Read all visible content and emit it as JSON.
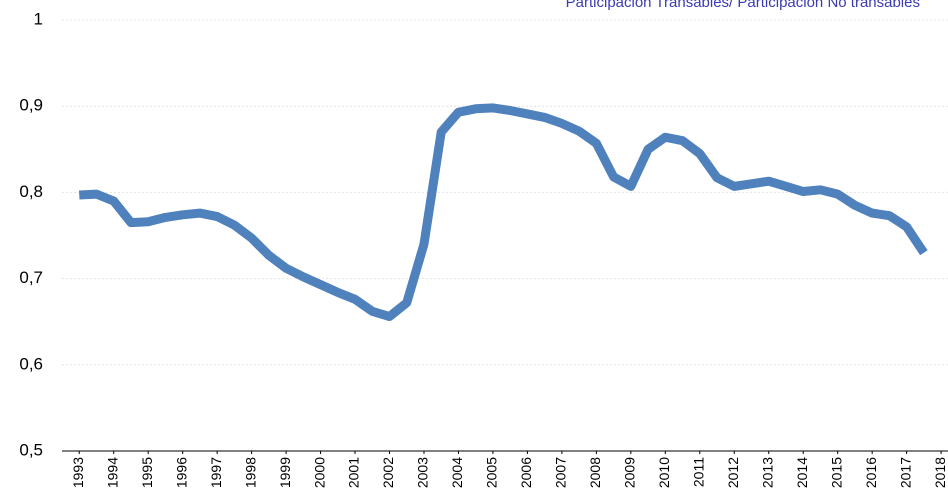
{
  "chart_data": {
    "type": "line",
    "legend_position": "top-right",
    "grid": true,
    "xlim": [
      1992.5,
      2018.2
    ],
    "xticks": [
      1993,
      1994,
      1995,
      1996,
      1997,
      1998,
      1999,
      2000,
      2001,
      2002,
      2003,
      2004,
      2005,
      2006,
      2007,
      2008,
      2009,
      2010,
      2011,
      2012,
      2013,
      2014,
      2015,
      2016,
      2017,
      2018
    ],
    "ylim": [
      0.5,
      1
    ],
    "yticks": [
      {
        "value": 0.5,
        "label": "0,5"
      },
      {
        "value": 0.6,
        "label": "0,6"
      },
      {
        "value": 0.7,
        "label": "0,7"
      },
      {
        "value": 0.8,
        "label": "0,8"
      },
      {
        "value": 0.9,
        "label": "0,9"
      },
      1
    ],
    "x": [
      1993,
      1993.5,
      1994,
      1994.5,
      1995,
      1995.5,
      1996,
      1996.5,
      1997,
      1997.5,
      1998,
      1998.5,
      1999,
      1999.5,
      2000,
      2000.5,
      2001,
      2001.5,
      2002,
      2002.5,
      2003,
      2003.5,
      2004,
      2004.5,
      2005,
      2005.5,
      2006,
      2006.5,
      2007,
      2007.5,
      2008,
      2008.5,
      2009,
      2009.5,
      2010,
      2010.5,
      2011,
      2011.5,
      2012,
      2012.5,
      2013,
      2013.5,
      2014,
      2014.5,
      2015,
      2015.5,
      2016,
      2016.5,
      2017,
      2017.5
    ],
    "series": [
      {
        "name": "Participación Transables/ Participación No transables",
        "color": "#4f81bd",
        "values": [
          0.797,
          0.798,
          0.79,
          0.765,
          0.766,
          0.771,
          0.774,
          0.776,
          0.772,
          0.762,
          0.747,
          0.727,
          0.712,
          0.702,
          0.693,
          0.684,
          0.676,
          0.662,
          0.656,
          0.672,
          0.74,
          0.87,
          0.893,
          0.897,
          0.898,
          0.895,
          0.891,
          0.887,
          0.88,
          0.871,
          0.857,
          0.818,
          0.807,
          0.85,
          0.864,
          0.86,
          0.845,
          0.817,
          0.807,
          0.81,
          0.813,
          0.807,
          0.801,
          0.803,
          0.798,
          0.785,
          0.776,
          0.773,
          0.76,
          0.73
        ]
      }
    ]
  }
}
